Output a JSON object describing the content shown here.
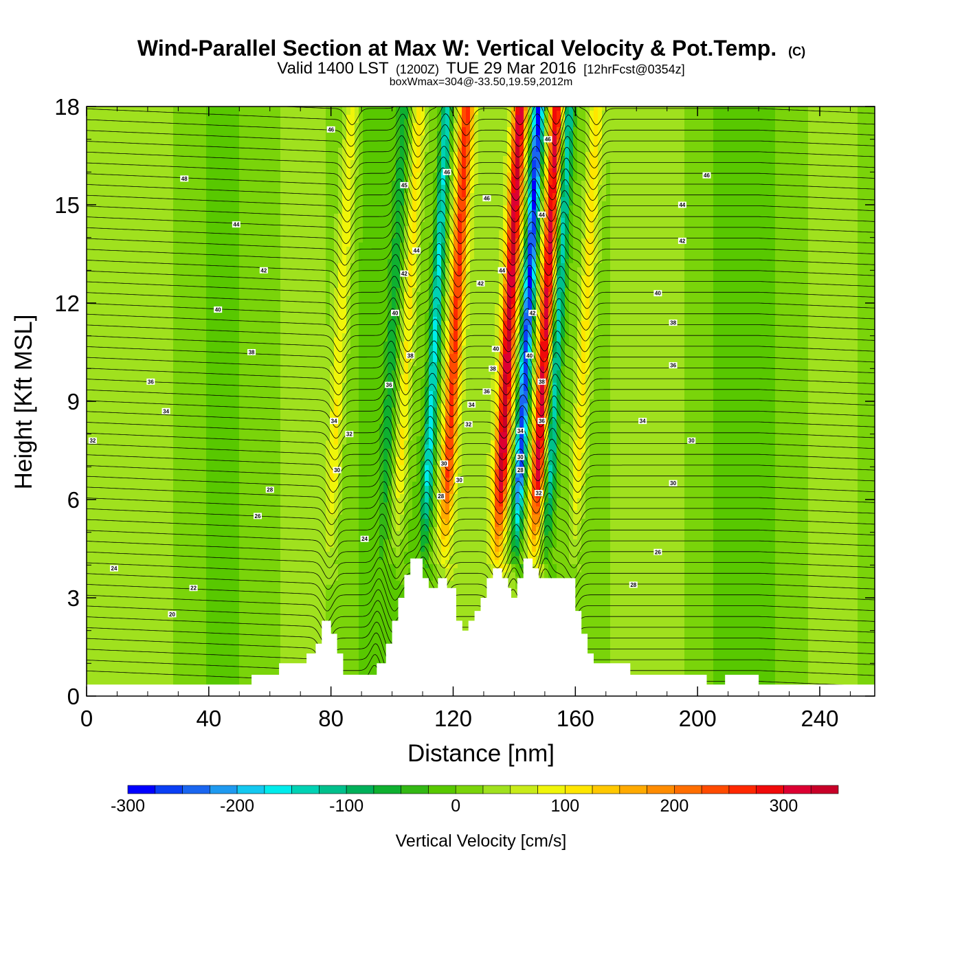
{
  "chart_data": {
    "type": "heatmap",
    "title": "Wind-Parallel Section at Max W: Vertical Velocity & Pot.Temp.",
    "title_mark": "(C)",
    "subtitle": {
      "valid": "Valid 1400 LST",
      "zulu": "(1200Z)",
      "date": "TUE 29 Mar 2016",
      "forecast": "[12hrFcst@0354z]"
    },
    "info": "boxWmax=304@-33.50,19.59,2012m",
    "xlabel": "Distance [nm]",
    "ylabel": "Height [Kft MSL]",
    "xlim": [
      0,
      258
    ],
    "ylim": [
      0,
      18
    ],
    "x_ticks": [
      "0",
      "40",
      "80",
      "120",
      "160",
      "200",
      "240"
    ],
    "y_ticks": [
      "0",
      "3",
      "6",
      "9",
      "12",
      "15",
      "18"
    ],
    "colorbar": {
      "label": "Vertical Velocity [cm/s]",
      "min": -300,
      "max": 350,
      "step": 25,
      "tick_labels": [
        "-300",
        "-200",
        "-100",
        "0",
        "100",
        "200",
        "300"
      ],
      "colors": [
        "#0000ff",
        "#0a3ff5",
        "#1a66f0",
        "#1f9af0",
        "#14c8f0",
        "#00ecec",
        "#00d2b4",
        "#00c08c",
        "#00b05a",
        "#0fb030",
        "#33b814",
        "#58c800",
        "#7ad40a",
        "#a0e11e",
        "#c8eb19",
        "#f0f50a",
        "#ffe600",
        "#ffc800",
        "#ffaa00",
        "#ff8c00",
        "#ff6e00",
        "#ff4b00",
        "#ff2800",
        "#f00a0a",
        "#dc0032",
        "#c80028"
      ]
    },
    "w_field": {
      "description_units": "cm/s",
      "updrafts": [
        {
          "x": 82,
          "w": 85
        },
        {
          "x": 104,
          "w": 110
        },
        {
          "x": 119.5,
          "w": 225
        },
        {
          "x": 137,
          "w": 300
        },
        {
          "x": 149,
          "w": 300
        },
        {
          "x": 162,
          "w": 100
        }
      ],
      "downdrafts": [
        {
          "x": 113,
          "w": -175
        },
        {
          "x": 143,
          "w": -300
        },
        {
          "x": 153,
          "w": -150
        },
        {
          "x": 99,
          "w": -60
        }
      ]
    },
    "terrain": [
      [
        0,
        0.35
      ],
      [
        54,
        0.35
      ],
      [
        54,
        0.65
      ],
      [
        63,
        0.65
      ],
      [
        63,
        1.0
      ],
      [
        72,
        1.0
      ],
      [
        72,
        1.3
      ],
      [
        75,
        1.3
      ],
      [
        75,
        1.6
      ],
      [
        77,
        1.6
      ],
      [
        77,
        2.3
      ],
      [
        80,
        2.3
      ],
      [
        80,
        1.9
      ],
      [
        82,
        1.9
      ],
      [
        82,
        1.3
      ],
      [
        84,
        1.3
      ],
      [
        84,
        0.65
      ],
      [
        95,
        0.65
      ],
      [
        95,
        1.0
      ],
      [
        98,
        1.0
      ],
      [
        98,
        1.6
      ],
      [
        100,
        1.6
      ],
      [
        100,
        2.3
      ],
      [
        102,
        2.3
      ],
      [
        102,
        3.0
      ],
      [
        104,
        3.0
      ],
      [
        104,
        3.7
      ],
      [
        106,
        3.7
      ],
      [
        106,
        4.2
      ],
      [
        110,
        4.2
      ],
      [
        110,
        3.6
      ],
      [
        112,
        3.6
      ],
      [
        112,
        3.3
      ],
      [
        115,
        3.3
      ],
      [
        115,
        3.6
      ],
      [
        118,
        3.6
      ],
      [
        118,
        3.3
      ],
      [
        121,
        3.3
      ],
      [
        121,
        2.3
      ],
      [
        123,
        2.3
      ],
      [
        123,
        2.0
      ],
      [
        125,
        2.0
      ],
      [
        125,
        2.3
      ],
      [
        127,
        2.3
      ],
      [
        127,
        2.6
      ],
      [
        129,
        2.6
      ],
      [
        129,
        3.0
      ],
      [
        131,
        3.0
      ],
      [
        131,
        3.6
      ],
      [
        133,
        3.6
      ],
      [
        133,
        3.9
      ],
      [
        136,
        3.9
      ],
      [
        136,
        3.6
      ],
      [
        138,
        3.6
      ],
      [
        138,
        3.3
      ],
      [
        139,
        3.3
      ],
      [
        139,
        3.0
      ],
      [
        141,
        3.0
      ],
      [
        141,
        3.6
      ],
      [
        143,
        3.6
      ],
      [
        143,
        4.2
      ],
      [
        146,
        4.2
      ],
      [
        146,
        3.9
      ],
      [
        148,
        3.9
      ],
      [
        148,
        3.6
      ],
      [
        160,
        3.6
      ],
      [
        160,
        2.6
      ],
      [
        162,
        2.6
      ],
      [
        162,
        1.9
      ],
      [
        164,
        1.9
      ],
      [
        164,
        1.3
      ],
      [
        166,
        1.3
      ],
      [
        166,
        1.0
      ],
      [
        178,
        1.0
      ],
      [
        178,
        0.65
      ],
      [
        203,
        0.65
      ],
      [
        203,
        0.35
      ],
      [
        209,
        0.35
      ],
      [
        209,
        0.65
      ],
      [
        220,
        0.65
      ],
      [
        220,
        0.35
      ],
      [
        258,
        0.35
      ]
    ],
    "theta_contours": {
      "base_value": 18,
      "interval": 0.5,
      "count": 54,
      "labels": [
        {
          "text": "46",
          "x": 80,
          "y": 17.3
        },
        {
          "text": "46",
          "x": 151,
          "y": 17.0
        },
        {
          "text": "46",
          "x": 203,
          "y": 15.9
        },
        {
          "text": "48",
          "x": 32,
          "y": 15.8
        },
        {
          "text": "46",
          "x": 118,
          "y": 16.0
        },
        {
          "text": "45",
          "x": 104,
          "y": 15.6
        },
        {
          "text": "46",
          "x": 131,
          "y": 15.2
        },
        {
          "text": "44",
          "x": 149,
          "y": 14.7
        },
        {
          "text": "44",
          "x": 195,
          "y": 15.0
        },
        {
          "text": "44",
          "x": 49,
          "y": 14.4
        },
        {
          "text": "42",
          "x": 195,
          "y": 13.9
        },
        {
          "text": "44",
          "x": 108,
          "y": 13.6
        },
        {
          "text": "42",
          "x": 58,
          "y": 13.0
        },
        {
          "text": "42",
          "x": 104,
          "y": 12.9
        },
        {
          "text": "44",
          "x": 136,
          "y": 13.0
        },
        {
          "text": "42",
          "x": 129,
          "y": 12.6
        },
        {
          "text": "40",
          "x": 187,
          "y": 12.3
        },
        {
          "text": "40",
          "x": 43,
          "y": 11.8
        },
        {
          "text": "40",
          "x": 101,
          "y": 11.7
        },
        {
          "text": "42",
          "x": 146,
          "y": 11.7
        },
        {
          "text": "38",
          "x": 192,
          "y": 11.4
        },
        {
          "text": "40",
          "x": 134,
          "y": 10.6
        },
        {
          "text": "38",
          "x": 54,
          "y": 10.5
        },
        {
          "text": "38",
          "x": 106,
          "y": 10.4
        },
        {
          "text": "40",
          "x": 145,
          "y": 10.4
        },
        {
          "text": "36",
          "x": 192,
          "y": 10.1
        },
        {
          "text": "38",
          "x": 133,
          "y": 10.0
        },
        {
          "text": "36",
          "x": 21,
          "y": 9.6
        },
        {
          "text": "36",
          "x": 99,
          "y": 9.5
        },
        {
          "text": "38",
          "x": 149,
          "y": 9.6
        },
        {
          "text": "36",
          "x": 131,
          "y": 9.3
        },
        {
          "text": "34",
          "x": 26,
          "y": 8.7
        },
        {
          "text": "34",
          "x": 126,
          "y": 8.9
        },
        {
          "text": "34",
          "x": 182,
          "y": 8.4
        },
        {
          "text": "34",
          "x": 81,
          "y": 8.4
        },
        {
          "text": "36",
          "x": 149,
          "y": 8.4
        },
        {
          "text": "32",
          "x": 125,
          "y": 8.3
        },
        {
          "text": "32",
          "x": 86,
          "y": 8.0
        },
        {
          "text": "34",
          "x": 142,
          "y": 8.1
        },
        {
          "text": "32",
          "x": 2,
          "y": 7.8
        },
        {
          "text": "30",
          "x": 198,
          "y": 7.8
        },
        {
          "text": "30",
          "x": 142,
          "y": 7.3
        },
        {
          "text": "30",
          "x": 117,
          "y": 7.1
        },
        {
          "text": "30",
          "x": 82,
          "y": 6.9
        },
        {
          "text": "28",
          "x": 142,
          "y": 6.9
        },
        {
          "text": "30",
          "x": 192,
          "y": 6.5
        },
        {
          "text": "30",
          "x": 122,
          "y": 6.6
        },
        {
          "text": "28",
          "x": 60,
          "y": 6.3
        },
        {
          "text": "32",
          "x": 148,
          "y": 6.2
        },
        {
          "text": "28",
          "x": 116,
          "y": 6.1
        },
        {
          "text": "26",
          "x": 56,
          "y": 5.5
        },
        {
          "text": "24",
          "x": 91,
          "y": 4.8
        },
        {
          "text": "26",
          "x": 187,
          "y": 4.4
        },
        {
          "text": "24",
          "x": 9,
          "y": 3.9
        },
        {
          "text": "28",
          "x": 179,
          "y": 3.4
        },
        {
          "text": "22",
          "x": 35,
          "y": 3.3
        },
        {
          "text": "20",
          "x": 28,
          "y": 2.5
        }
      ]
    }
  }
}
